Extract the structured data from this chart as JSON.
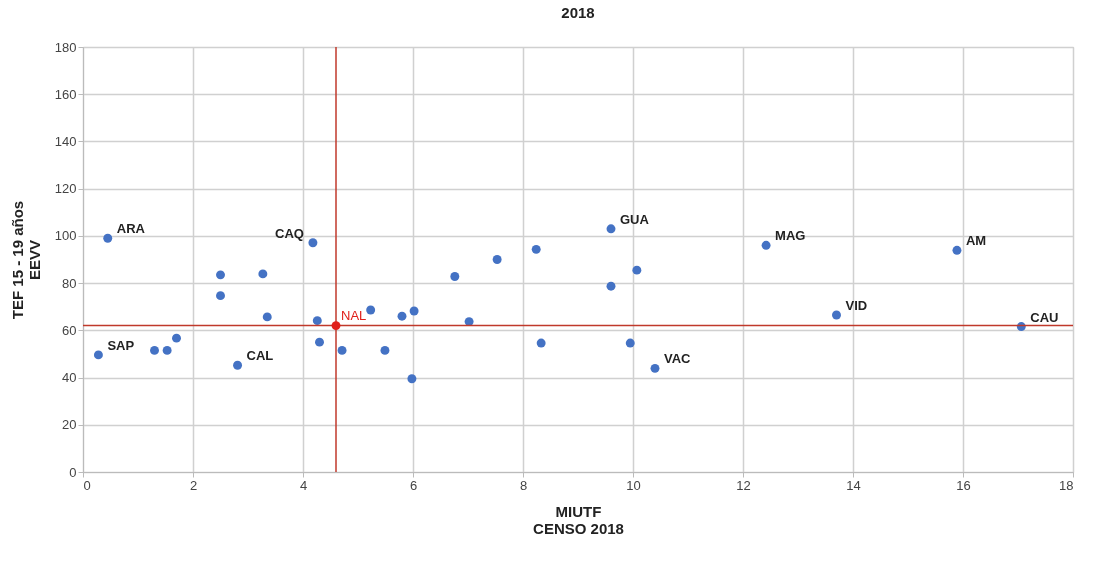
{
  "chart_data": {
    "type": "scatter",
    "title": "2018",
    "xlabel": "MIUTF\nCENSO 2018",
    "ylabel": "TEF 15 - 19 años\nEEVV",
    "xlim": [
      0,
      18
    ],
    "xticks": [
      0,
      2,
      4,
      6,
      8,
      10,
      12,
      14,
      16,
      18
    ],
    "ylim": [
      0,
      180
    ],
    "yticks": [
      0,
      20,
      40,
      60,
      80,
      100,
      120,
      140,
      160,
      180
    ],
    "grid": true,
    "marker": "circle",
    "series": [
      {
        "color": "#4472c4",
        "x": [
          0.45,
          0.28,
          1.3,
          1.53,
          1.7,
          2.5,
          2.5,
          3.27,
          3.35,
          4.18,
          2.81,
          4.26,
          4.3,
          4.71,
          5.23,
          5.49,
          5.8,
          6.02,
          5.98,
          6.76,
          7.53,
          7.02,
          8.24,
          8.33,
          9.6,
          9.6,
          10.07,
          9.95,
          10.4,
          12.42,
          15.89,
          13.7,
          17.06
        ],
        "values": [
          99,
          49.6,
          51.5,
          51.5,
          56.7,
          83.5,
          74.7,
          83.9,
          65.7,
          97.1,
          45.2,
          64.1,
          55,
          51.5,
          68.6,
          51.5,
          66,
          68.2,
          39.5,
          82.8,
          90,
          63.7,
          94.3,
          54.6,
          103,
          78.7,
          85.5,
          54.6,
          43.9,
          96,
          93.9,
          66.5,
          61.6
        ]
      },
      {
        "name": "NAL",
        "color": "#e0201b",
        "x": [
          4.6
        ],
        "values": [
          62
        ]
      }
    ],
    "ref_lines": [
      {
        "axis": "x",
        "value": 4.6,
        "color": "#c0392b"
      },
      {
        "axis": "y",
        "value": 62,
        "color": "#c0392b"
      }
    ],
    "annotations": [
      {
        "text": "ARA",
        "x": 0.45,
        "y": 99
      },
      {
        "text": "SAP",
        "x": 0.28,
        "y": 49.6
      },
      {
        "text": "CAQ",
        "x": 4.18,
        "y": 97.1
      },
      {
        "text": "CAL",
        "x": 2.81,
        "y": 45.2
      },
      {
        "text": "GUA",
        "x": 9.6,
        "y": 103
      },
      {
        "text": "VAC",
        "x": 10.4,
        "y": 43.9
      },
      {
        "text": "MAG",
        "x": 12.42,
        "y": 96
      },
      {
        "text": "AM",
        "x": 15.89,
        "y": 93.9
      },
      {
        "text": "VID",
        "x": 13.7,
        "y": 66.5
      },
      {
        "text": "CAU",
        "x": 17.06,
        "y": 61.6
      }
    ]
  }
}
